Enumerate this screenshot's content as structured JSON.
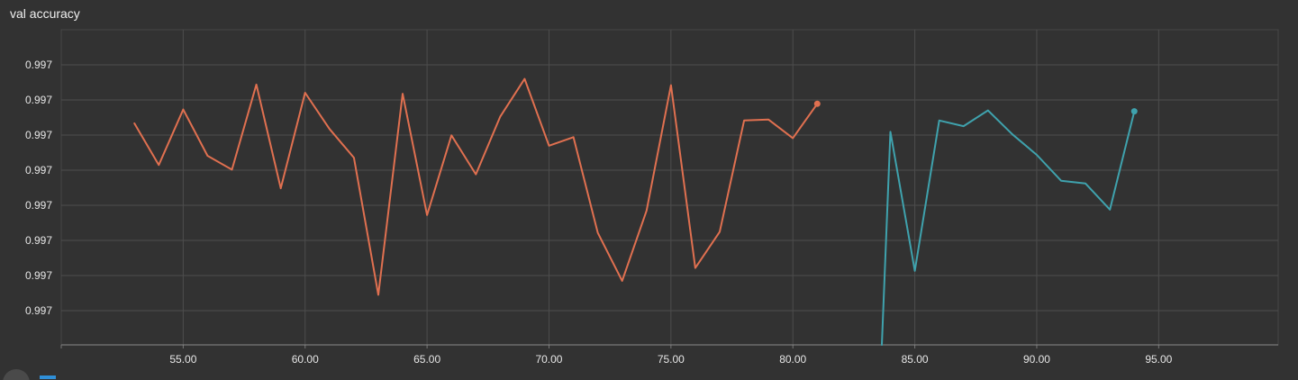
{
  "title": "val accuracy",
  "chart_data": {
    "type": "line",
    "title": "val accuracy",
    "xlabel": "",
    "ylabel": "",
    "xlim": [
      50,
      99.9
    ],
    "ylim": [
      0,
      1
    ],
    "x_ticks": [
      "55.00",
      "60.00",
      "65.00",
      "70.00",
      "75.00",
      "80.00",
      "85.00",
      "90.00",
      "95.00"
    ],
    "y_ticks": [
      "0.997",
      "0.997",
      "0.997",
      "0.997",
      "0.997",
      "0.997",
      "0.997",
      "0.997"
    ],
    "grid": true,
    "series": [
      {
        "color": "#e07050",
        "x": [
          53,
          54,
          55,
          56,
          57,
          58,
          59,
          60,
          61,
          62,
          63,
          64,
          65,
          66,
          67,
          68,
          69,
          70,
          71,
          72,
          73,
          74,
          75,
          76,
          77,
          78,
          79,
          80,
          81
        ],
        "y": [
          0.703,
          0.571,
          0.747,
          0.6,
          0.556,
          0.826,
          0.497,
          0.8,
          0.685,
          0.594,
          0.159,
          0.797,
          0.412,
          0.665,
          0.541,
          0.724,
          0.844,
          0.632,
          0.659,
          0.356,
          0.203,
          0.426,
          0.824,
          0.244,
          0.359,
          0.712,
          0.715,
          0.656,
          0.765
        ]
      },
      {
        "color": "#3fa2ad",
        "x": [
          83.65,
          84,
          85,
          86,
          87,
          88,
          89,
          90,
          91,
          92,
          93,
          94
        ],
        "y": [
          0.0,
          0.676,
          0.235,
          0.712,
          0.694,
          0.744,
          0.668,
          0.603,
          0.521,
          0.512,
          0.429,
          0.741
        ]
      }
    ]
  }
}
